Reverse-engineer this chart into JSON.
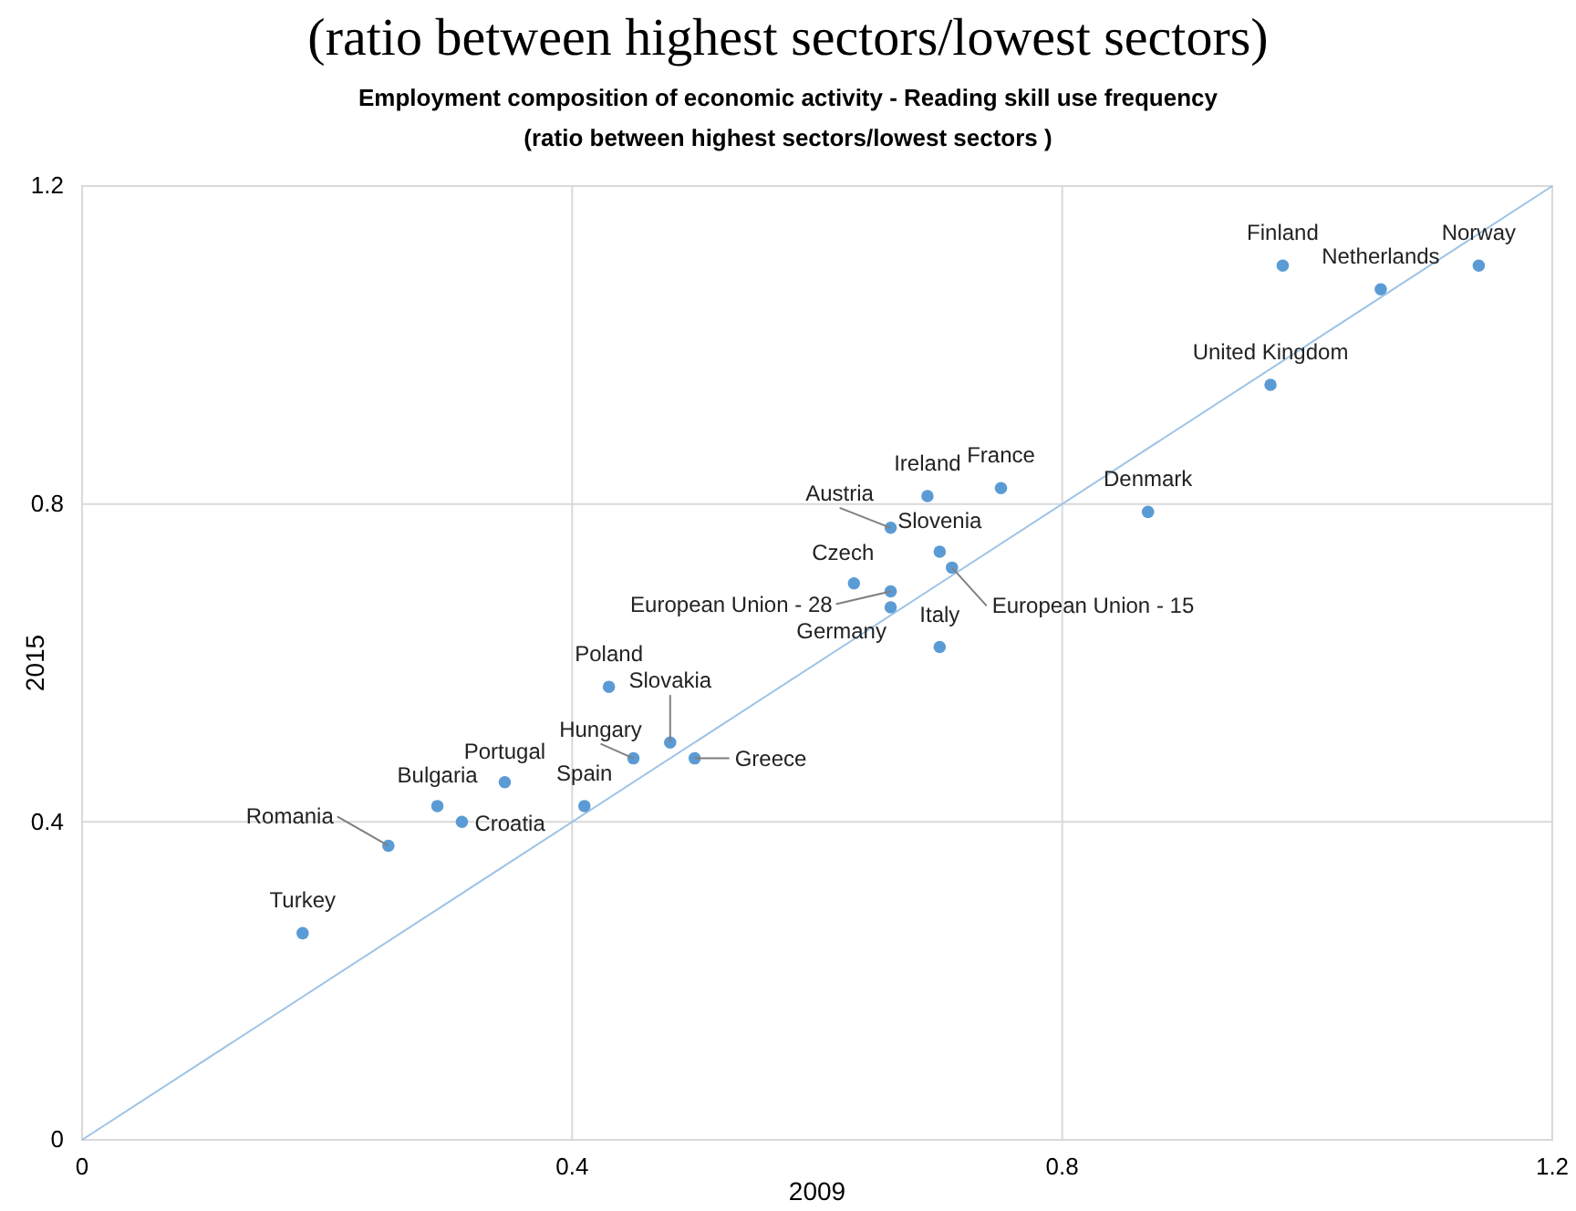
{
  "chart_data": {
    "type": "scatter",
    "title": "(ratio between highest sectors/lowest sectors)",
    "subtitle": "Employment composition of economic activity - Reading skill use frequency\n(ratio between highest sectors/lowest sectors )",
    "xlabel": "2009",
    "ylabel": "2015",
    "xlim": [
      0,
      1.2
    ],
    "ylim": [
      0,
      1.2
    ],
    "xticks": [
      0,
      0.4,
      0.8,
      1.2
    ],
    "yticks": [
      0,
      0.4,
      0.8,
      1.2
    ],
    "grid": true,
    "series": [
      {
        "marker": "circle",
        "color": "#5b9bd5",
        "x": [
          0.18,
          0.25,
          0.29,
          0.31,
          0.345,
          0.41,
          0.45,
          0.48,
          0.5,
          0.43,
          0.69,
          0.75,
          0.87,
          0.66,
          0.7,
          0.71,
          0.63,
          0.66,
          0.66,
          0.7,
          0.98,
          1.06,
          1.14,
          0.97
        ],
        "values": [
          0.26,
          0.37,
          0.42,
          0.4,
          0.45,
          0.42,
          0.48,
          0.5,
          0.48,
          0.57,
          0.81,
          0.82,
          0.79,
          0.77,
          0.74,
          0.72,
          0.7,
          0.69,
          0.67,
          0.62,
          1.1,
          1.07,
          1.1,
          0.95
        ]
      },
      {
        "type": "line",
        "color": "#9dc3e6",
        "x": [
          0,
          1.2
        ],
        "values": [
          0,
          1.2
        ]
      }
    ],
    "annotations": [
      {
        "text": "Turkey",
        "x": 0.18,
        "y": 0.26
      },
      {
        "text": "Romania",
        "x": 0.25,
        "y": 0.37
      },
      {
        "text": "Bulgaria",
        "x": 0.29,
        "y": 0.42
      },
      {
        "text": "Croatia",
        "x": 0.31,
        "y": 0.4
      },
      {
        "text": "Portugal",
        "x": 0.345,
        "y": 0.45
      },
      {
        "text": "Spain",
        "x": 0.41,
        "y": 0.42
      },
      {
        "text": "Hungary",
        "x": 0.45,
        "y": 0.48
      },
      {
        "text": "Slovakia",
        "x": 0.48,
        "y": 0.5
      },
      {
        "text": "Greece",
        "x": 0.5,
        "y": 0.48
      },
      {
        "text": "Poland",
        "x": 0.43,
        "y": 0.57
      },
      {
        "text": "Ireland",
        "x": 0.69,
        "y": 0.81
      },
      {
        "text": "France",
        "x": 0.75,
        "y": 0.82
      },
      {
        "text": "Denmark",
        "x": 0.87,
        "y": 0.79
      },
      {
        "text": "Austria",
        "x": 0.66,
        "y": 0.77
      },
      {
        "text": "Slovenia",
        "x": 0.7,
        "y": 0.74
      },
      {
        "text": "European Union - 15",
        "x": 0.71,
        "y": 0.72
      },
      {
        "text": "Czech",
        "x": 0.63,
        "y": 0.7
      },
      {
        "text": "European Union - 28",
        "x": 0.66,
        "y": 0.69
      },
      {
        "text": "Germany",
        "x": 0.66,
        "y": 0.67
      },
      {
        "text": "Italy",
        "x": 0.7,
        "y": 0.62
      },
      {
        "text": "Finland",
        "x": 0.98,
        "y": 1.1
      },
      {
        "text": "Netherlands",
        "x": 1.06,
        "y": 1.07
      },
      {
        "text": "Norway",
        "x": 1.14,
        "y": 1.1
      },
      {
        "text": "United Kingdom",
        "x": 0.97,
        "y": 0.95
      }
    ]
  }
}
